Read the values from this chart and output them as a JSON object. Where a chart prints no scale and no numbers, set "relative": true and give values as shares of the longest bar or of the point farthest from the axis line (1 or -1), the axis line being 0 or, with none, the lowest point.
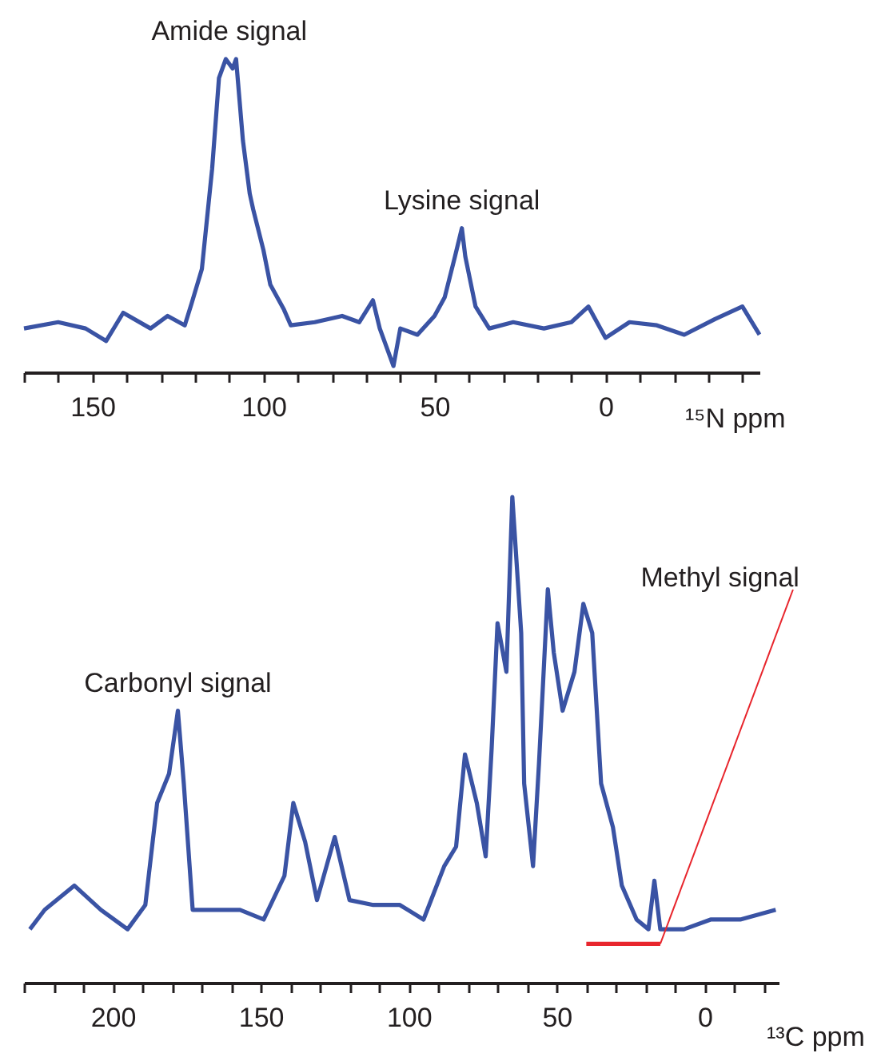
{
  "chart_data": [
    {
      "type": "line",
      "relative": true,
      "color": "#3a53a4",
      "xlabel": "¹⁵N ppm",
      "xlim": [
        170,
        -45
      ],
      "xticks": [
        {
          "value": 170,
          "label": null
        },
        {
          "value": 160,
          "label": null
        },
        150,
        {
          "value": 140,
          "label": null
        },
        {
          "value": 130,
          "label": null
        },
        {
          "value": 120,
          "label": null
        },
        {
          "value": 110,
          "label": null
        },
        100,
        {
          "value": 90,
          "label": null
        },
        {
          "value": 80,
          "label": null
        },
        {
          "value": 70,
          "label": null
        },
        {
          "value": 60,
          "label": null
        },
        50,
        {
          "value": 40,
          "label": null
        },
        {
          "value": 30,
          "label": null
        },
        {
          "value": 20,
          "label": null
        },
        {
          "value": 10,
          "label": null
        },
        0,
        {
          "value": -10,
          "label": null
        },
        {
          "value": -20,
          "label": null
        },
        {
          "value": -30,
          "label": null
        },
        {
          "value": -40,
          "label": null
        }
      ],
      "x": [
        170,
        160,
        152,
        146,
        141,
        133,
        128,
        123,
        121,
        118,
        115,
        113,
        111,
        109,
        108,
        106,
        104,
        103,
        100,
        98,
        94,
        92,
        85,
        77,
        72,
        68,
        66,
        62,
        60,
        55,
        50,
        47,
        44,
        42,
        41,
        38,
        34,
        27,
        18,
        10,
        5,
        0,
        -7,
        -15,
        -23,
        -32,
        -40,
        -45
      ],
      "values": [
        0.14,
        0.16,
        0.14,
        0.1,
        0.19,
        0.14,
        0.18,
        0.15,
        0.22,
        0.33,
        0.65,
        0.94,
        1.0,
        0.97,
        1.0,
        0.74,
        0.57,
        0.52,
        0.39,
        0.28,
        0.2,
        0.15,
        0.16,
        0.18,
        0.16,
        0.23,
        0.14,
        0.02,
        0.14,
        0.12,
        0.18,
        0.24,
        0.37,
        0.46,
        0.37,
        0.21,
        0.14,
        0.16,
        0.14,
        0.16,
        0.21,
        0.11,
        0.16,
        0.15,
        0.12,
        0.17,
        0.21,
        0.12
      ],
      "annotations": [
        {
          "text": "Amide signal",
          "x": 110,
          "y": 1.0
        },
        {
          "text": "Lysine signal",
          "x": 42,
          "y": 0.46
        }
      ]
    },
    {
      "type": "line",
      "relative": true,
      "xlabel": "¹³C ppm",
      "xlim": [
        230,
        -25
      ],
      "xticks": [
        {
          "value": 230,
          "label": null
        },
        {
          "value": 220,
          "label": null
        },
        {
          "value": 210,
          "label": null
        },
        200,
        {
          "value": 190,
          "label": null
        },
        {
          "value": 180,
          "label": null
        },
        {
          "value": 170,
          "label": null
        },
        {
          "value": 160,
          "label": null
        },
        150,
        {
          "value": 140,
          "label": null
        },
        {
          "value": 130,
          "label": null
        },
        {
          "value": 120,
          "label": null
        },
        {
          "value": 110,
          "label": null
        },
        100,
        {
          "value": 90,
          "label": null
        },
        {
          "value": 80,
          "label": null
        },
        {
          "value": 70,
          "label": null
        },
        {
          "value": 60,
          "label": null
        },
        50,
        {
          "value": 40,
          "label": null
        },
        {
          "value": 30,
          "label": null
        },
        {
          "value": 20,
          "label": null
        },
        {
          "value": 10,
          "label": null
        },
        0,
        {
          "value": -10,
          "label": null
        },
        {
          "value": -20,
          "label": null
        }
      ],
      "x": [
        228,
        223,
        213,
        204,
        195,
        189,
        185,
        181,
        178,
        176,
        173,
        166,
        157,
        149,
        142,
        139,
        135,
        131,
        125,
        120,
        112,
        103,
        95,
        88,
        84,
        81,
        77,
        74,
        72,
        70,
        67,
        65,
        62,
        61,
        58,
        56,
        53,
        51,
        48,
        44,
        41,
        38,
        35,
        31,
        28,
        23,
        19,
        17,
        15,
        7,
        -2,
        -12,
        -24
      ],
      "series": [
        {
          "color": "#3a53a4",
          "values": [
            0.11,
            0.15,
            0.2,
            0.15,
            0.11,
            0.16,
            0.37,
            0.43,
            0.56,
            0.41,
            0.15,
            0.15,
            0.15,
            0.13,
            0.22,
            0.37,
            0.29,
            0.17,
            0.3,
            0.17,
            0.16,
            0.16,
            0.13,
            0.24,
            0.28,
            0.47,
            0.37,
            0.26,
            0.48,
            0.74,
            0.64,
            1.0,
            0.72,
            0.41,
            0.24,
            0.45,
            0.81,
            0.68,
            0.56,
            0.64,
            0.78,
            0.72,
            0.41,
            0.32,
            0.2,
            0.13,
            0.11,
            0.21,
            0.11,
            0.11,
            0.13,
            0.13,
            0.15
          ]
        },
        {
          "color": "#e8262d",
          "x": [
            40,
            15
          ],
          "values": [
            0.08,
            0.08
          ]
        }
      ],
      "annotations": [
        {
          "text": "Carbonyl signal",
          "x": 178,
          "y": 0.56
        },
        {
          "text": "Methyl signal",
          "x": 15,
          "y": 0.08
        }
      ]
    }
  ]
}
